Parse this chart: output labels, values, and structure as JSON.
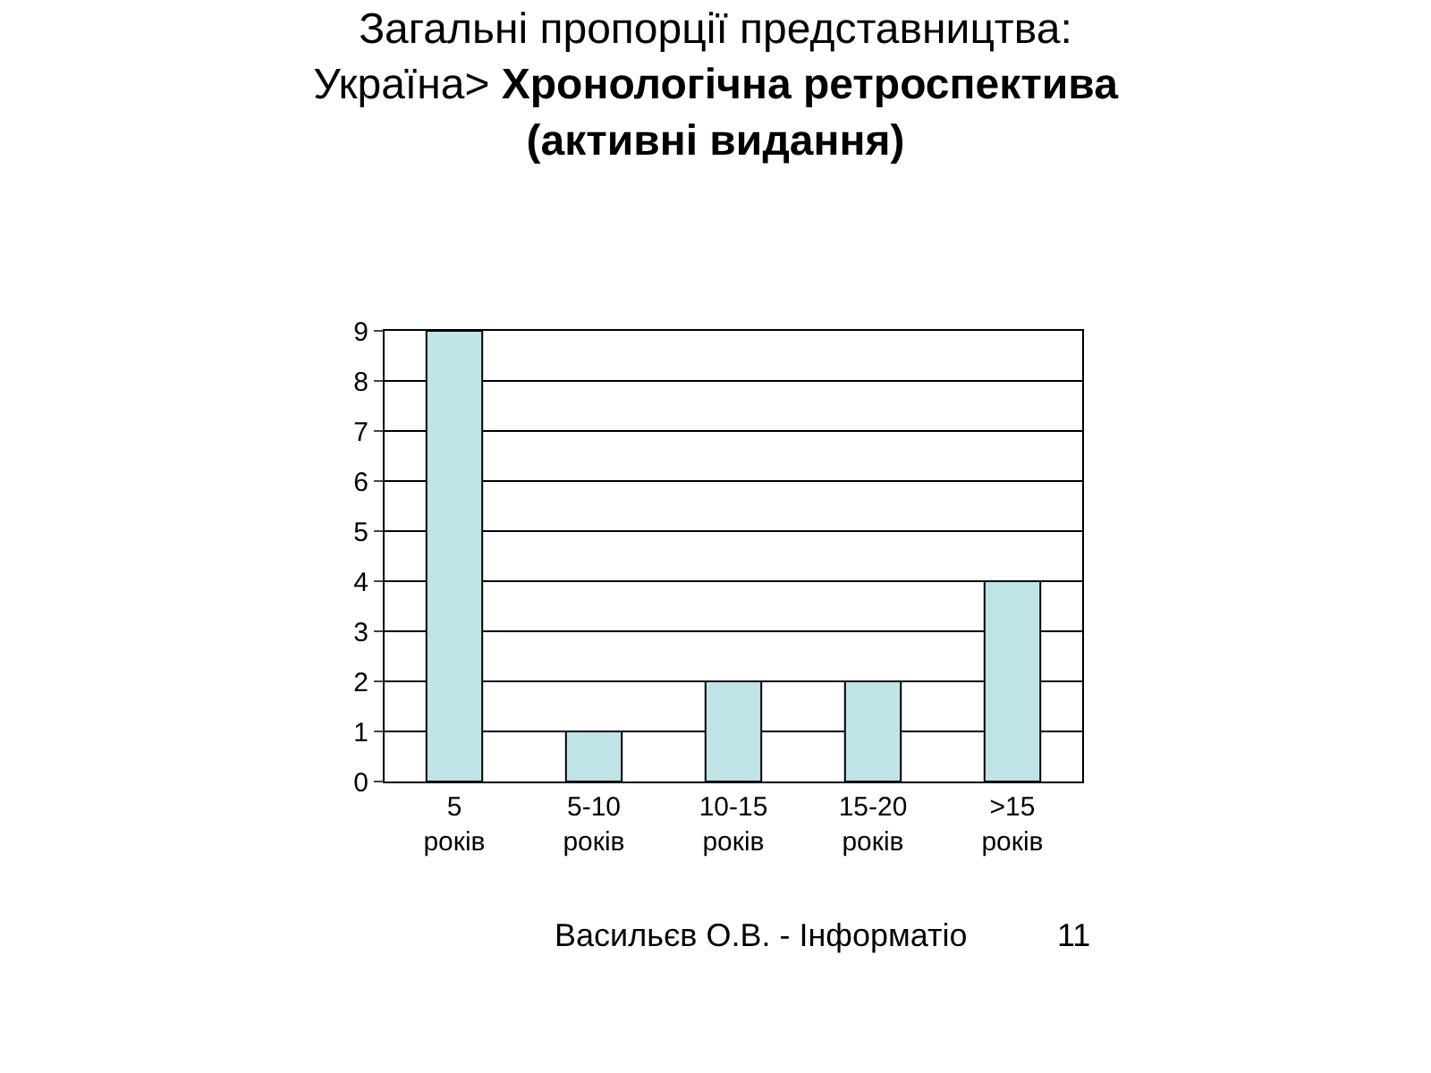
{
  "chart_data": {
    "type": "bar",
    "title": "Загальні пропорції представництва:\nУкраїна>",
    "subtitle": "Хронологічна ретроспектива\n(активні видання)",
    "categories": [
      "5\nроків",
      "5-10\nроків",
      "10-15\nроків",
      "15-20\nроків",
      ">15\nроків"
    ],
    "values": [
      9,
      1,
      2,
      2,
      4
    ],
    "color": "#bfe3e6",
    "ylim": [
      0,
      9
    ],
    "yticks": [
      0,
      1,
      2,
      3,
      4,
      5,
      6,
      7,
      8,
      9
    ],
    "grid": "y",
    "annotations": [
      "Васильєв О.В. - Інформатіо",
      "11"
    ]
  }
}
